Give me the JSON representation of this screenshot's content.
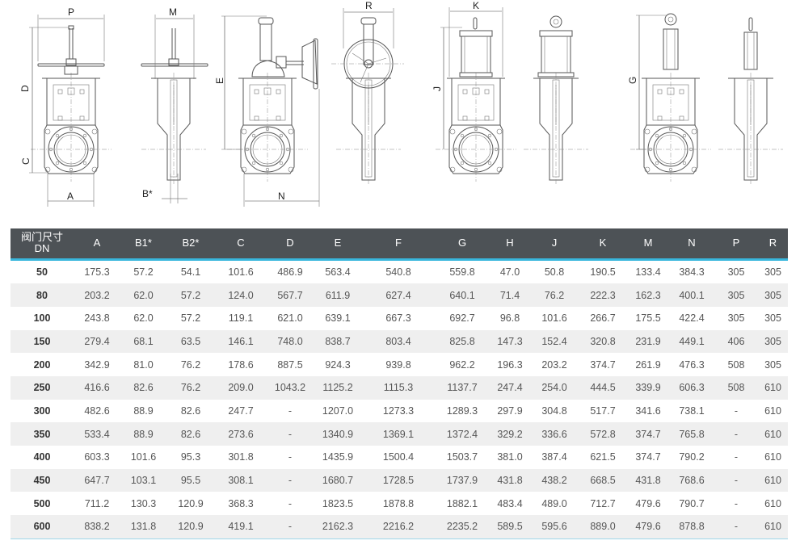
{
  "drawing": {
    "labels": {
      "P": "P",
      "D": "D",
      "C": "C",
      "A": "A",
      "M": "M",
      "B": "B*",
      "E": "E",
      "N": "N",
      "R": "R",
      "K": "K",
      "J": "J",
      "G": "G"
    }
  },
  "table": {
    "header_dn_line1": "阀门尺寸",
    "header_dn_line2": "DN",
    "columns": [
      "A",
      "B1*",
      "B2*",
      "C",
      "D",
      "E",
      "F",
      "G",
      "H",
      "J",
      "K",
      "M",
      "N",
      "P",
      "R"
    ],
    "rows": [
      [
        "50",
        "175.3",
        "57.2",
        "54.1",
        "101.6",
        "486.9",
        "563.4",
        "540.8",
        "559.8",
        "47.0",
        "50.8",
        "190.5",
        "133.4",
        "384.3",
        "305",
        "305"
      ],
      [
        "80",
        "203.2",
        "62.0",
        "57.2",
        "124.0",
        "567.7",
        "611.9",
        "627.4",
        "640.1",
        "71.4",
        "76.2",
        "222.3",
        "162.3",
        "400.1",
        "305",
        "305"
      ],
      [
        "100",
        "243.8",
        "62.0",
        "57.2",
        "119.1",
        "621.0",
        "639.1",
        "667.3",
        "692.7",
        "96.8",
        "101.6",
        "266.7",
        "175.5",
        "422.4",
        "305",
        "305"
      ],
      [
        "150",
        "279.4",
        "68.1",
        "63.5",
        "146.1",
        "748.0",
        "838.7",
        "803.4",
        "825.8",
        "147.3",
        "152.4",
        "320.8",
        "231.9",
        "449.1",
        "406",
        "305"
      ],
      [
        "200",
        "342.9",
        "81.0",
        "76.2",
        "178.6",
        "887.5",
        "924.3",
        "939.8",
        "962.2",
        "196.3",
        "203.2",
        "374.7",
        "261.9",
        "476.3",
        "508",
        "305"
      ],
      [
        "250",
        "416.6",
        "82.6",
        "76.2",
        "209.0",
        "1043.2",
        "1125.2",
        "1115.3",
        "1137.7",
        "247.4",
        "254.0",
        "444.5",
        "339.9",
        "606.3",
        "508",
        "610"
      ],
      [
        "300",
        "482.6",
        "88.9",
        "82.6",
        "247.7",
        "-",
        "1207.0",
        "1273.3",
        "1289.3",
        "297.9",
        "304.8",
        "517.7",
        "341.6",
        "738.1",
        "-",
        "610"
      ],
      [
        "350",
        "533.4",
        "88.9",
        "82.6",
        "273.6",
        "-",
        "1340.9",
        "1369.1",
        "1372.4",
        "329.2",
        "336.6",
        "572.8",
        "374.7",
        "765.8",
        "-",
        "610"
      ],
      [
        "400",
        "603.3",
        "101.6",
        "95.3",
        "301.8",
        "-",
        "1435.9",
        "1500.4",
        "1503.7",
        "381.0",
        "387.4",
        "621.5",
        "374.7",
        "790.2",
        "-",
        "610"
      ],
      [
        "450",
        "647.7",
        "103.1",
        "95.5",
        "308.1",
        "-",
        "1680.7",
        "1728.5",
        "1737.9",
        "431.8",
        "438.2",
        "668.5",
        "431.8",
        "768.6",
        "-",
        "610"
      ],
      [
        "500",
        "711.2",
        "130.3",
        "120.9",
        "368.3",
        "-",
        "1823.5",
        "1878.8",
        "1882.1",
        "483.4",
        "489.0",
        "712.7",
        "479.6",
        "790.7",
        "-",
        "610"
      ],
      [
        "600",
        "838.2",
        "131.8",
        "120.9",
        "419.1",
        "-",
        "2162.3",
        "2216.2",
        "2235.2",
        "589.5",
        "595.6",
        "889.0",
        "479.6",
        "878.8",
        "-",
        "610"
      ]
    ]
  },
  "colors": {
    "header_bg": "#4d5256",
    "header_rule": "#38b6dc",
    "row_alt": "#efefef"
  }
}
